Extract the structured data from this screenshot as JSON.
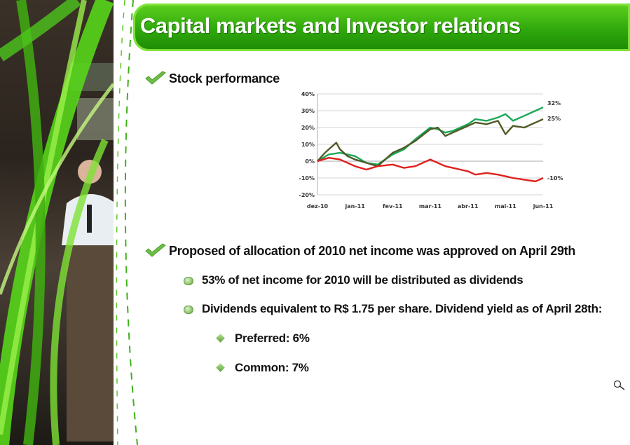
{
  "title": "Capital markets and Investor relations",
  "sections": {
    "stock": {
      "heading": "Stock performance"
    },
    "allocation": {
      "heading": "Proposed of allocation of 2010 net income was approved on April 29th",
      "bullets": [
        "53% of net income for 2010 will be distributed as dividends",
        "Dividends equivalent to R$ 1.75 per share. Dividend yield as of April 28th:"
      ],
      "sub_bullets": [
        "Preferred: 6%",
        "Common: 7%"
      ]
    }
  },
  "colors": {
    "accent_green": "#2fa80c",
    "series_green": "#1aa855",
    "series_olive": "#4f5a27",
    "series_red": "#e0201d"
  },
  "icons": {
    "check": "check-icon",
    "zoom": "magnifier-icon"
  },
  "chart_data": {
    "type": "line",
    "x_ticks": [
      "dez-10",
      "jan-11",
      "fev-11",
      "mar-11",
      "abr-11",
      "mai-11",
      "jun-11"
    ],
    "y_ticks": [
      "40%",
      "30%",
      "20%",
      "10%",
      "0%",
      "-10%",
      "-20%"
    ],
    "ylim": [
      -20,
      40
    ],
    "grid": true,
    "end_labels": [
      "32%",
      "25%",
      "-10%"
    ],
    "series": [
      {
        "color": "#1aa855",
        "x": [
          0,
          0.3,
          0.6,
          1.0,
          1.3,
          1.6,
          2.0,
          2.3,
          2.6,
          3.0,
          3.2,
          3.4,
          3.6,
          3.8,
          4.0,
          4.2,
          4.5,
          4.8,
          5.0,
          5.2,
          5.5,
          5.8,
          6.0
        ],
        "values": [
          0,
          4,
          5,
          3,
          -1,
          -2,
          4,
          7,
          13,
          20,
          19,
          17,
          18,
          20,
          22,
          25,
          24,
          26,
          28,
          24,
          27,
          30,
          32
        ]
      },
      {
        "color": "#4f5a27",
        "x": [
          0,
          0.2,
          0.4,
          0.5,
          0.6,
          0.8,
          1.0,
          1.3,
          1.6,
          2.0,
          2.3,
          2.6,
          3.0,
          3.2,
          3.4,
          3.6,
          3.8,
          4.0,
          4.2,
          4.5,
          4.8,
          5.0,
          5.2,
          5.5,
          5.8,
          6.0
        ],
        "values": [
          0,
          5,
          9,
          11,
          7,
          3,
          1,
          -1,
          -3,
          5,
          8,
          12,
          19,
          20,
          15,
          17,
          19,
          21,
          23,
          22,
          24,
          16,
          21,
          20,
          23,
          25
        ]
      },
      {
        "color": "#e0201d",
        "x": [
          0,
          0.3,
          0.6,
          1.0,
          1.3,
          1.6,
          2.0,
          2.3,
          2.6,
          3.0,
          3.2,
          3.4,
          3.6,
          3.8,
          4.0,
          4.2,
          4.5,
          4.8,
          5.0,
          5.2,
          5.5,
          5.8,
          6.0
        ],
        "values": [
          0,
          2,
          1,
          -3,
          -5,
          -3,
          -2,
          -4,
          -3,
          1,
          -1,
          -3,
          -4,
          -5,
          -6,
          -8,
          -7,
          -8,
          -9,
          -10,
          -11,
          -12,
          -10
        ]
      }
    ]
  }
}
